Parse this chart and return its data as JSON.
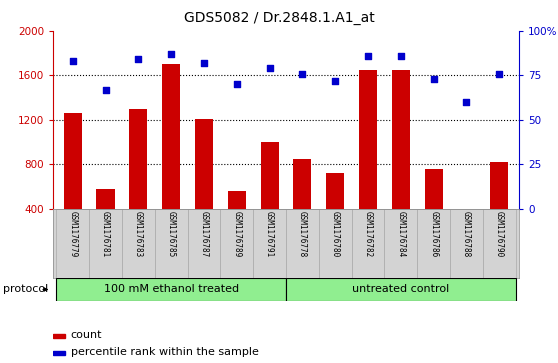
{
  "title": "GDS5082 / Dr.2848.1.A1_at",
  "samples": [
    "GSM1176779",
    "GSM1176781",
    "GSM1176783",
    "GSM1176785",
    "GSM1176787",
    "GSM1176789",
    "GSM1176791",
    "GSM1176778",
    "GSM1176780",
    "GSM1176782",
    "GSM1176784",
    "GSM1176786",
    "GSM1176788",
    "GSM1176790"
  ],
  "counts": [
    1260,
    580,
    1300,
    1700,
    1210,
    560,
    1000,
    850,
    720,
    1650,
    1650,
    760,
    400,
    820
  ],
  "percentiles": [
    83,
    67,
    84,
    87,
    82,
    70,
    79,
    76,
    72,
    86,
    86,
    73,
    60,
    76
  ],
  "group1_label": "100 mM ethanol treated",
  "group2_label": "untreated control",
  "group1_count": 7,
  "group2_count": 7,
  "bar_color": "#cc0000",
  "dot_color": "#0000cc",
  "ylim_left": [
    400,
    2000
  ],
  "ylim_right": [
    0,
    100
  ],
  "yticks_left": [
    400,
    800,
    1200,
    1600,
    2000
  ],
  "yticks_right": [
    0,
    25,
    50,
    75,
    100
  ],
  "grid_values": [
    800,
    1200,
    1600
  ],
  "legend_count_label": "count",
  "legend_pct_label": "percentile rank within the sample",
  "bg_color": "#d3d3d3",
  "group_color": "#90ee90",
  "protocol_label": "protocol"
}
